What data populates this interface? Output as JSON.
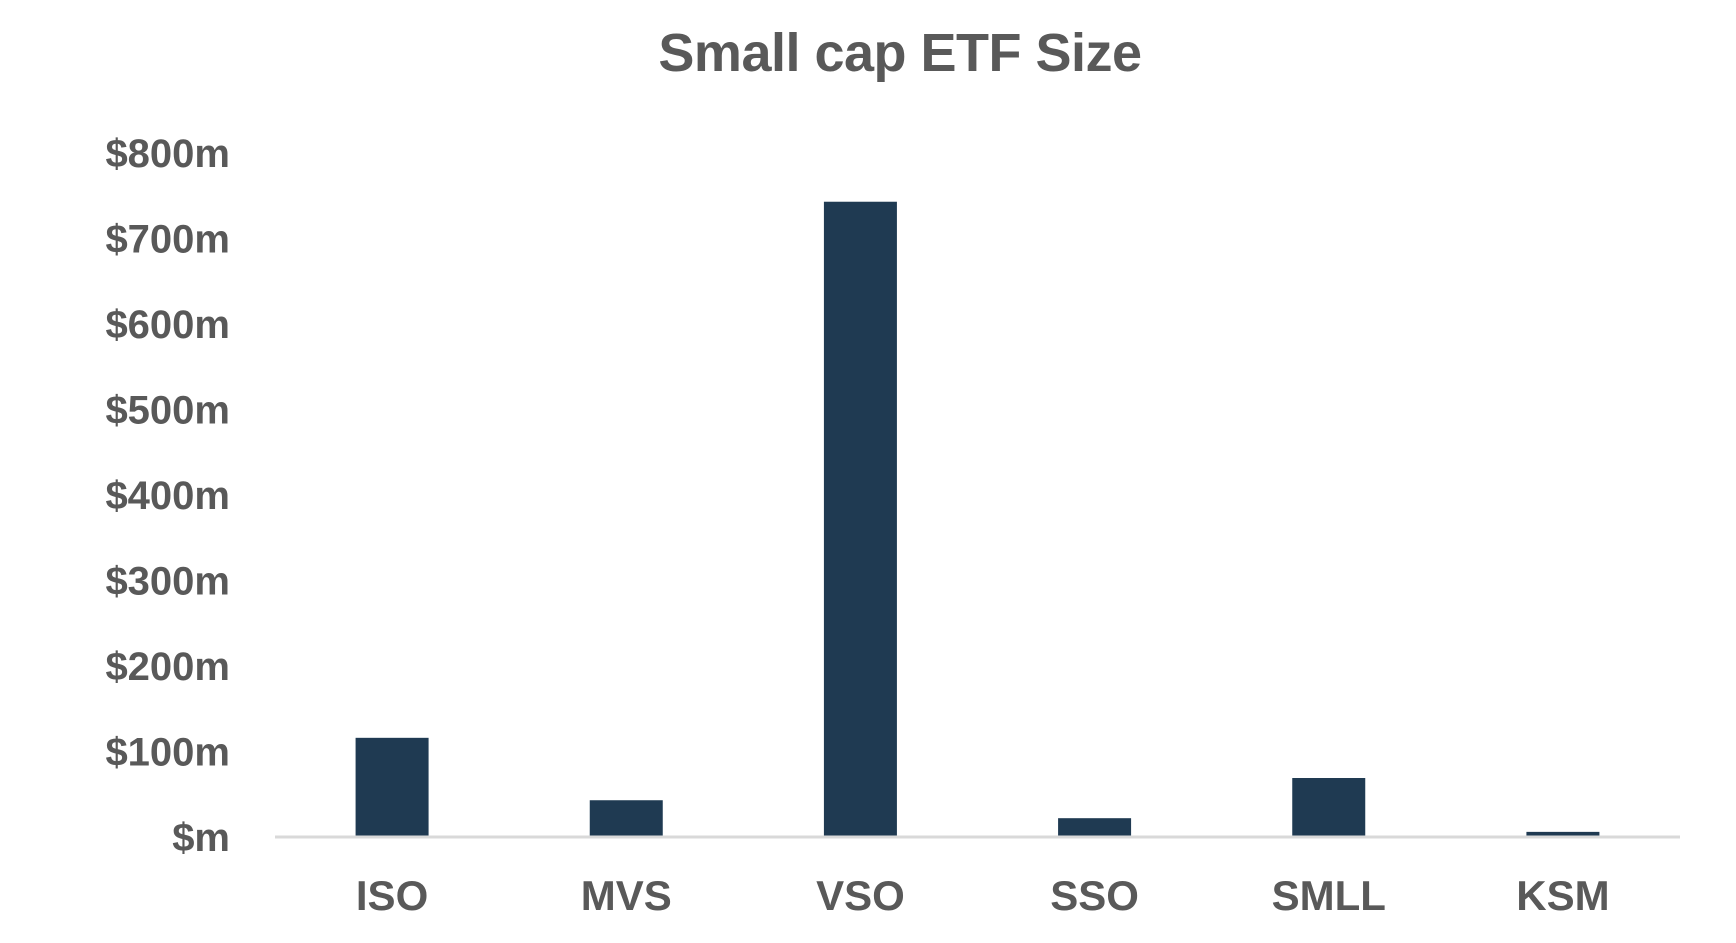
{
  "chart_data": {
    "type": "bar",
    "title": "Small cap ETF Size",
    "xlabel": "",
    "ylabel": "",
    "categories": [
      "ISO",
      "MVS",
      "VSO",
      "SSO",
      "SMLL",
      "KSM"
    ],
    "values": [
      116,
      43,
      743,
      22,
      69,
      6
    ],
    "unit": "$m",
    "ylim": [
      0,
      800
    ],
    "yticks": [
      0,
      100,
      200,
      300,
      400,
      500,
      600,
      700,
      800
    ],
    "ytick_labels": [
      "$m",
      "$100m",
      "$200m",
      "$300m",
      "$400m",
      "$500m",
      "$600m",
      "$700m",
      "$800m"
    ],
    "grid": false,
    "legend": "none",
    "bar_color": "#1f3a52",
    "axis_color": "#d9d9d9",
    "text_color": "#595959"
  }
}
